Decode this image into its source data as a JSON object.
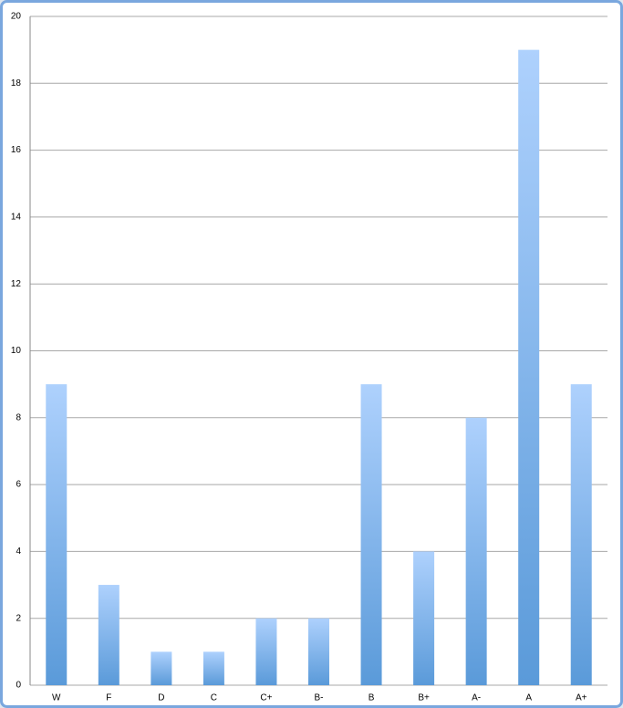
{
  "chart_data": {
    "type": "bar",
    "categories": [
      "W",
      "F",
      "D",
      "C",
      "C+",
      "B-",
      "B",
      "B+",
      "A-",
      "A",
      "A+"
    ],
    "values": [
      9,
      3,
      1,
      1,
      2,
      2,
      9,
      4,
      8,
      19,
      9
    ],
    "color": "#5a9ad9",
    "ylim": [
      0,
      20
    ],
    "yticks": [
      0,
      2,
      4,
      6,
      8,
      10,
      12,
      14,
      16,
      18,
      20
    ],
    "grid": true
  }
}
